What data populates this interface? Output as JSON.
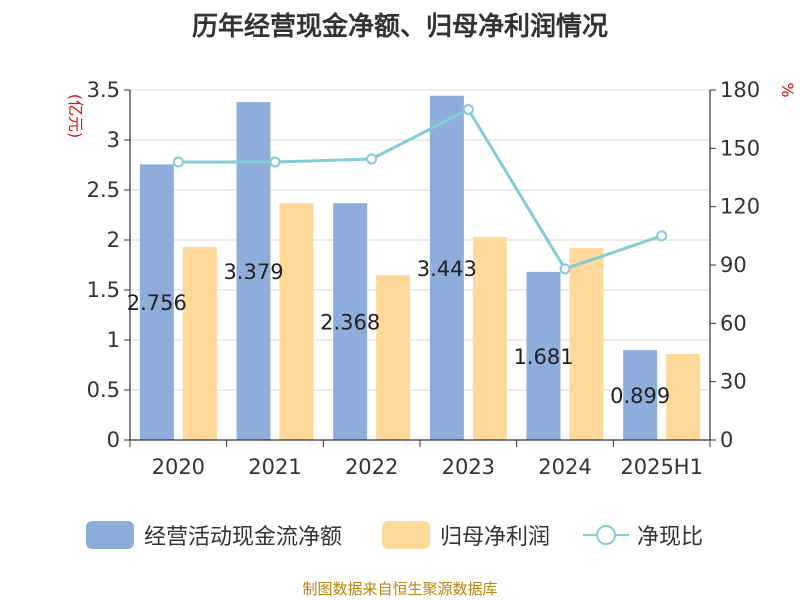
{
  "title": "历年经营现金净额、归母净利润情况",
  "source": "制图数据来自恒生聚源数据库",
  "colors": {
    "cash": "#8eaddb",
    "profit": "#fed999",
    "ratio": "#84ccd6",
    "unit": "#e01010",
    "axis": "#333333",
    "grid": "#d9d9d9"
  },
  "legend": {
    "cash": "经营活动现金流净额",
    "profit": "归母净利润",
    "ratio": "净现比"
  },
  "chart_data": {
    "type": "bar",
    "categories": [
      "2020",
      "2021",
      "2022",
      "2023",
      "2024",
      "2025H1"
    ],
    "series": [
      {
        "name": "经营活动现金流净额",
        "values": [
          2.756,
          3.379,
          2.368,
          3.443,
          1.681,
          0.899
        ],
        "labels": [
          "2.756",
          "3.379",
          "2.368",
          "3.443",
          "1.681",
          "0.899"
        ]
      },
      {
        "name": "归母净利润",
        "values": [
          1.93,
          2.37,
          1.65,
          2.03,
          1.92,
          0.86
        ]
      },
      {
        "name": "净现比",
        "values": [
          143,
          143,
          144.5,
          170,
          88,
          105
        ],
        "axis": "right",
        "type": "line"
      }
    ],
    "y_left": {
      "unit": "(亿元)",
      "ylim": [
        0,
        3.5
      ],
      "ticks": [
        "0",
        "0.5",
        "1",
        "1.5",
        "2",
        "2.5",
        "3",
        "3.5"
      ]
    },
    "y_right": {
      "unit": "%",
      "ylim": [
        0,
        180
      ],
      "ticks": [
        "0",
        "30",
        "60",
        "90",
        "120",
        "150",
        "180"
      ]
    },
    "grid": true,
    "legend_position": "bottom"
  }
}
